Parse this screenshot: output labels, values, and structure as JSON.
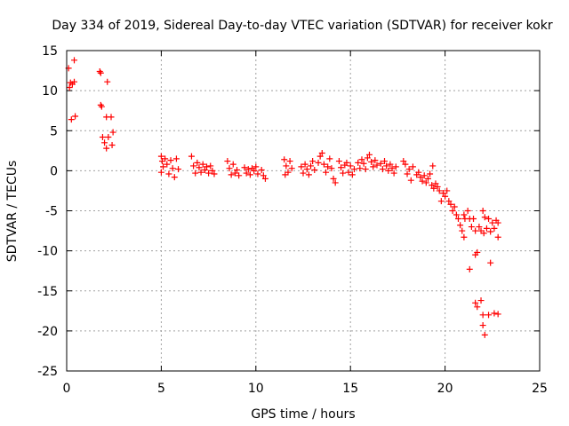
{
  "chart_data": {
    "type": "scatter",
    "title": "Day 334 of 2019, Sidereal Day-to-day VTEC variation (SDTVAR) for receiver kokr",
    "xlabel": "GPS time / hours",
    "ylabel": "SDTVAR / TECUs",
    "xlim": [
      0,
      25
    ],
    "ylim": [
      -25,
      15
    ],
    "xticks": [
      0,
      5,
      10,
      15,
      20,
      25
    ],
    "yticks": [
      15,
      10,
      5,
      0,
      -5,
      -10,
      -15,
      -20,
      -25
    ],
    "grid": true,
    "marker": "+",
    "color": "#ff0000",
    "series": [
      {
        "name": "SDTVAR",
        "points": [
          [
            0.1,
            12.8
          ],
          [
            0.15,
            10.4
          ],
          [
            0.2,
            11.0
          ],
          [
            0.25,
            6.4
          ],
          [
            0.3,
            10.8
          ],
          [
            0.4,
            13.8
          ],
          [
            0.4,
            11.1
          ],
          [
            0.45,
            6.8
          ],
          [
            1.75,
            12.4
          ],
          [
            1.8,
            12.2
          ],
          [
            1.8,
            8.2
          ],
          [
            1.85,
            8.0
          ],
          [
            1.9,
            4.2
          ],
          [
            2.0,
            3.5
          ],
          [
            2.1,
            2.8
          ],
          [
            2.1,
            6.7
          ],
          [
            2.15,
            11.1
          ],
          [
            2.2,
            4.2
          ],
          [
            2.35,
            6.7
          ],
          [
            2.4,
            3.2
          ],
          [
            2.45,
            4.8
          ],
          [
            5.0,
            1.8
          ],
          [
            5.0,
            -0.2
          ],
          [
            5.05,
            1.2
          ],
          [
            5.1,
            0.5
          ],
          [
            5.2,
            1.5
          ],
          [
            5.3,
            0.8
          ],
          [
            5.4,
            -0.4
          ],
          [
            5.5,
            1.3
          ],
          [
            5.6,
            0.3
          ],
          [
            5.7,
            -0.8
          ],
          [
            5.8,
            1.5
          ],
          [
            5.9,
            0.2
          ],
          [
            6.6,
            1.8
          ],
          [
            6.7,
            0.6
          ],
          [
            6.8,
            -0.3
          ],
          [
            6.9,
            1.0
          ],
          [
            7.0,
            0.4
          ],
          [
            7.1,
            -0.2
          ],
          [
            7.2,
            0.8
          ],
          [
            7.3,
            0.1
          ],
          [
            7.4,
            0.5
          ],
          [
            7.5,
            -0.3
          ],
          [
            7.6,
            0.6
          ],
          [
            7.7,
            0.0
          ],
          [
            7.8,
            -0.4
          ],
          [
            8.5,
            1.2
          ],
          [
            8.6,
            0.3
          ],
          [
            8.7,
            -0.5
          ],
          [
            8.8,
            0.8
          ],
          [
            8.9,
            -0.3
          ],
          [
            9.0,
            0.1
          ],
          [
            9.1,
            -0.6
          ],
          [
            9.4,
            0.4
          ],
          [
            9.5,
            -0.3
          ],
          [
            9.6,
            0.2
          ],
          [
            9.7,
            -0.5
          ],
          [
            9.8,
            0.3
          ],
          [
            9.9,
            0.0
          ],
          [
            10.0,
            0.5
          ],
          [
            10.1,
            -0.4
          ],
          [
            10.3,
            0.1
          ],
          [
            10.4,
            -0.6
          ],
          [
            10.5,
            -1.0
          ],
          [
            11.5,
            1.4
          ],
          [
            11.55,
            -0.5
          ],
          [
            11.6,
            0.6
          ],
          [
            11.7,
            -0.2
          ],
          [
            11.8,
            1.2
          ],
          [
            11.9,
            0.3
          ],
          [
            12.4,
            0.5
          ],
          [
            12.5,
            -0.3
          ],
          [
            12.6,
            0.8
          ],
          [
            12.7,
            0.2
          ],
          [
            12.8,
            -0.5
          ],
          [
            12.9,
            0.6
          ],
          [
            13.0,
            1.2
          ],
          [
            13.1,
            0.1
          ],
          [
            13.3,
            1.0
          ],
          [
            13.4,
            1.8
          ],
          [
            13.5,
            2.2
          ],
          [
            13.6,
            0.8
          ],
          [
            13.7,
            -0.2
          ],
          [
            13.8,
            0.5
          ],
          [
            13.9,
            1.5
          ],
          [
            14.0,
            0.3
          ],
          [
            14.1,
            -1.0
          ],
          [
            14.2,
            -1.5
          ],
          [
            14.4,
            1.2
          ],
          [
            14.5,
            0.4
          ],
          [
            14.6,
            -0.3
          ],
          [
            14.7,
            0.7
          ],
          [
            14.8,
            1.0
          ],
          [
            14.9,
            -0.2
          ],
          [
            15.0,
            0.6
          ],
          [
            15.1,
            -0.5
          ],
          [
            15.2,
            0.2
          ],
          [
            15.4,
            1.0
          ],
          [
            15.5,
            0.3
          ],
          [
            15.6,
            1.4
          ],
          [
            15.7,
            0.9
          ],
          [
            15.8,
            0.2
          ],
          [
            15.9,
            1.6
          ],
          [
            16.0,
            2.0
          ],
          [
            16.1,
            1.1
          ],
          [
            16.2,
            0.5
          ],
          [
            16.3,
            1.3
          ],
          [
            16.4,
            0.7
          ],
          [
            16.6,
            0.9
          ],
          [
            16.7,
            0.2
          ],
          [
            16.8,
            1.2
          ],
          [
            16.9,
            0.6
          ],
          [
            17.0,
            0.0
          ],
          [
            17.1,
            0.8
          ],
          [
            17.2,
            0.3
          ],
          [
            17.3,
            -0.3
          ],
          [
            17.4,
            0.5
          ],
          [
            17.8,
            1.2
          ],
          [
            17.9,
            0.8
          ],
          [
            18.0,
            -0.4
          ],
          [
            18.1,
            0.2
          ],
          [
            18.2,
            -1.2
          ],
          [
            18.3,
            0.5
          ],
          [
            18.5,
            -0.5
          ],
          [
            18.6,
            -0.2
          ],
          [
            18.7,
            -0.8
          ],
          [
            18.8,
            -1.3
          ],
          [
            18.9,
            -0.6
          ],
          [
            19.0,
            -1.5
          ],
          [
            19.1,
            -1.0
          ],
          [
            19.2,
            -0.4
          ],
          [
            19.3,
            -1.8
          ],
          [
            19.35,
            0.6
          ],
          [
            19.4,
            -2.2
          ],
          [
            19.5,
            -1.6
          ],
          [
            19.6,
            -2.0
          ],
          [
            19.7,
            -2.5
          ],
          [
            19.8,
            -3.8
          ],
          [
            19.9,
            -2.8
          ],
          [
            20.0,
            -3.2
          ],
          [
            20.1,
            -2.5
          ],
          [
            20.2,
            -3.8
          ],
          [
            20.3,
            -4.2
          ],
          [
            20.4,
            -5.0
          ],
          [
            20.5,
            -4.5
          ],
          [
            20.6,
            -5.5
          ],
          [
            20.7,
            -6.0
          ],
          [
            20.8,
            -6.8
          ],
          [
            20.9,
            -7.5
          ],
          [
            21.0,
            -8.3
          ],
          [
            21.0,
            -5.5
          ],
          [
            21.05,
            -6.0
          ],
          [
            21.2,
            -5.0
          ],
          [
            21.3,
            -6.0
          ],
          [
            21.4,
            -7.0
          ],
          [
            21.5,
            -6.0
          ],
          [
            21.6,
            -7.5
          ],
          [
            21.7,
            -10.2
          ],
          [
            21.8,
            -7.0
          ],
          [
            21.9,
            -7.5
          ],
          [
            22.0,
            -5.0
          ],
          [
            22.05,
            -7.8
          ],
          [
            22.1,
            -5.8
          ],
          [
            22.2,
            -7.2
          ],
          [
            22.3,
            -6.0
          ],
          [
            22.4,
            -7.6
          ],
          [
            22.5,
            -6.5
          ],
          [
            22.6,
            -7.2
          ],
          [
            22.7,
            -6.2
          ],
          [
            22.8,
            -8.3
          ],
          [
            22.8,
            -6.5
          ],
          [
            21.3,
            -12.3
          ],
          [
            21.6,
            -10.5
          ],
          [
            21.6,
            -16.5
          ],
          [
            21.7,
            -17.0
          ],
          [
            21.9,
            -16.2
          ],
          [
            22.0,
            -18.0
          ],
          [
            22.0,
            -19.3
          ],
          [
            22.1,
            -20.5
          ],
          [
            22.3,
            -18.0
          ],
          [
            22.4,
            -11.5
          ],
          [
            22.6,
            -17.8
          ],
          [
            22.8,
            -17.9
          ]
        ]
      }
    ]
  }
}
